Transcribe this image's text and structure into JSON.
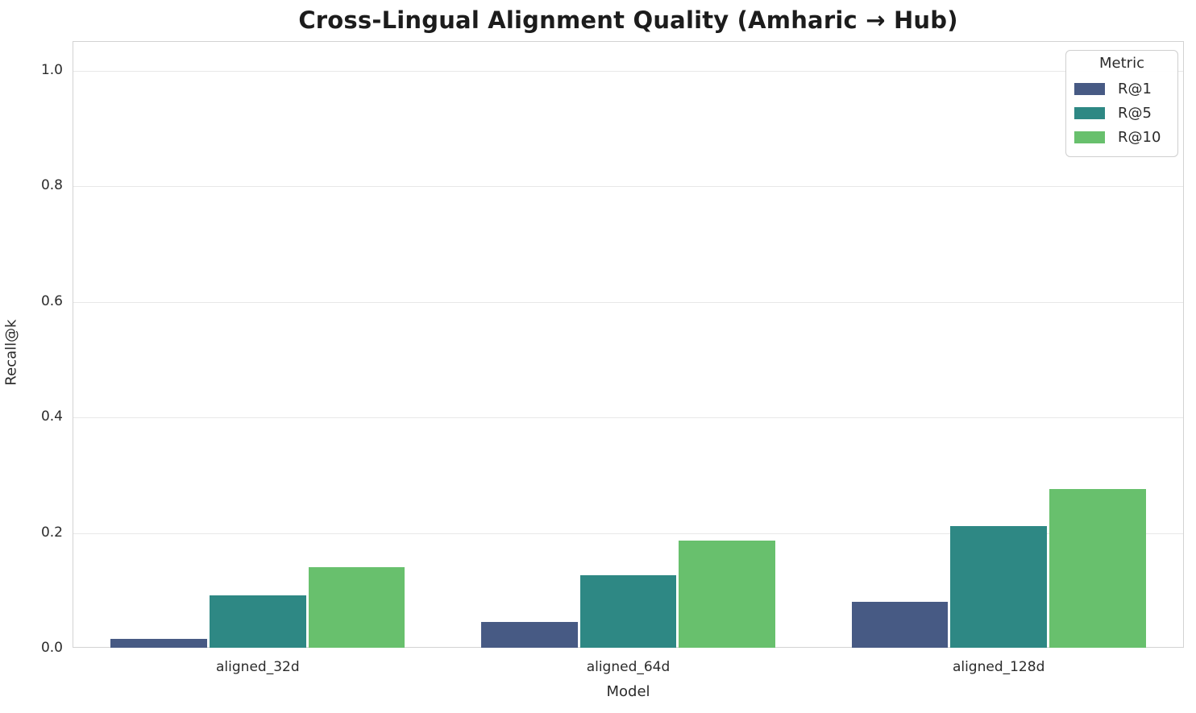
{
  "chart_data": {
    "type": "bar",
    "title": "Cross-Lingual Alignment Quality (Amharic → Hub)",
    "xlabel": "Model",
    "ylabel": "Recall@k",
    "categories": [
      "aligned_32d",
      "aligned_64d",
      "aligned_128d"
    ],
    "series": [
      {
        "name": "R@1",
        "color": "#475a84",
        "values": [
          0.015,
          0.045,
          0.08
        ]
      },
      {
        "name": "R@5",
        "color": "#2e8884",
        "values": [
          0.09,
          0.125,
          0.21
        ]
      },
      {
        "name": "R@10",
        "color": "#68c06d",
        "values": [
          0.14,
          0.185,
          0.275
        ]
      }
    ],
    "ylim": [
      0,
      1.05
    ],
    "yticks": [
      "0.0",
      "0.2",
      "0.4",
      "0.6",
      "0.8",
      "1.0"
    ],
    "grid": "horizontal",
    "grid_color": "#e8e8e8",
    "legend": {
      "title": "Metric",
      "position": "upper right"
    }
  }
}
